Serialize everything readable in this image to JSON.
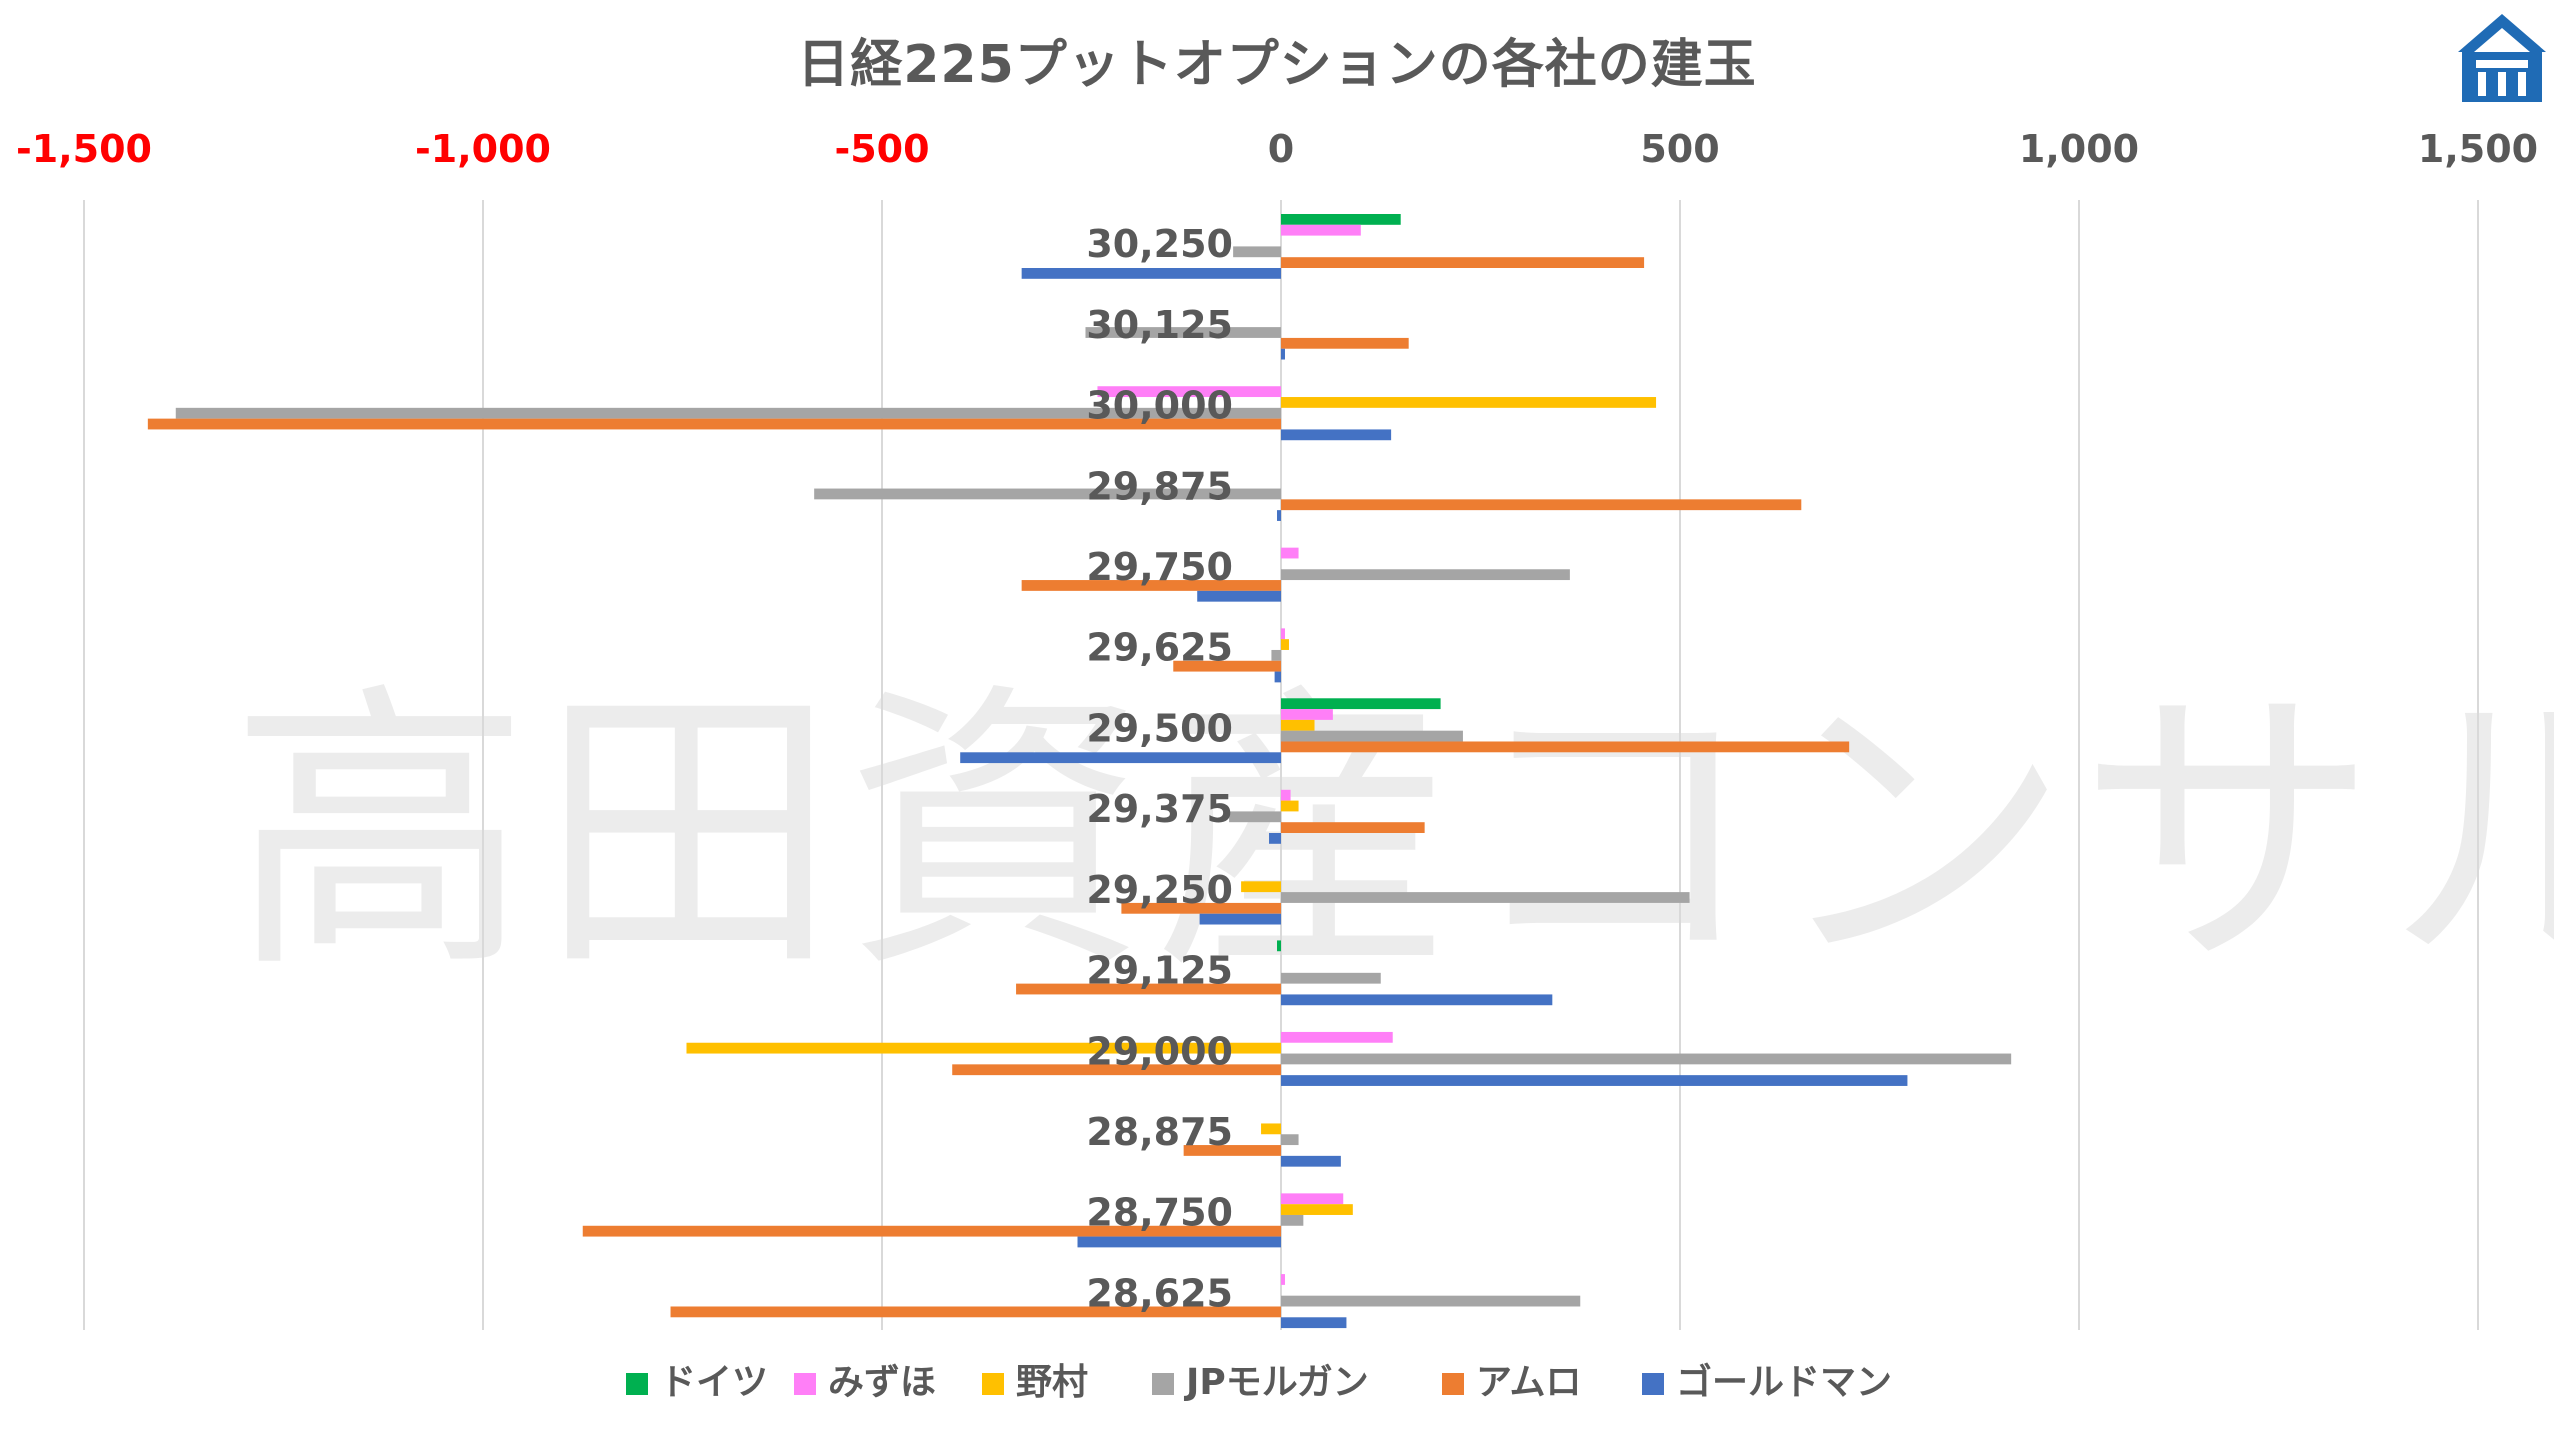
{
  "chart_data": {
    "type": "bar",
    "orientation": "horizontal",
    "title": "日経225プットオプションの各社の建玉",
    "watermark": "高田資産コンサル",
    "xlim": [
      -1500,
      1500
    ],
    "x_ticks": [
      -1500,
      -1000,
      -500,
      0,
      500,
      1000,
      1500
    ],
    "x_tick_labels": [
      "-1,500",
      "-1,000",
      "-500",
      "0",
      "500",
      "1,000",
      "1,500"
    ],
    "axis_position": "top",
    "negative_tick_color": "#ff0000",
    "gridlines": true,
    "legend_position": "bottom",
    "categories": [
      "30,250",
      "30,125",
      "30,000",
      "29,875",
      "29,750",
      "29,625",
      "29,500",
      "29,375",
      "29,250",
      "29,125",
      "29,000",
      "28,875",
      "28,750",
      "28,625"
    ],
    "series": [
      {
        "name": "ドイツ",
        "color": "#00b050",
        "values": [
          150,
          0,
          0,
          0,
          0,
          0,
          200,
          0,
          0,
          -5,
          0,
          0,
          0,
          0
        ]
      },
      {
        "name": "みずほ",
        "color": "#ff7ff7",
        "values": [
          100,
          0,
          -230,
          0,
          22,
          5,
          65,
          12,
          0,
          0,
          140,
          0,
          78,
          5
        ]
      },
      {
        "name": "野村",
        "color": "#ffc000",
        "values": [
          0,
          0,
          470,
          0,
          0,
          10,
          42,
          22,
          -50,
          0,
          -745,
          -25,
          90,
          0
        ]
      },
      {
        "name": "JPモルガン",
        "color": "#a5a5a5",
        "values": [
          -60,
          -245,
          -1385,
          -585,
          362,
          -12,
          228,
          -65,
          512,
          125,
          915,
          22,
          28,
          375
        ]
      },
      {
        "name": "アムロ",
        "color": "#ed7d31",
        "values": [
          455,
          160,
          -1420,
          652,
          -325,
          -135,
          712,
          180,
          -200,
          -332,
          -412,
          -122,
          -875,
          -765
        ]
      },
      {
        "name": "ゴールドマン",
        "color": "#4472c4",
        "values": [
          -325,
          5,
          138,
          -5,
          -105,
          -8,
          -402,
          -15,
          -102,
          340,
          785,
          75,
          -255,
          82
        ]
      }
    ]
  },
  "logo": {
    "name": "logo-emblem",
    "color": "#1f6bb5"
  }
}
